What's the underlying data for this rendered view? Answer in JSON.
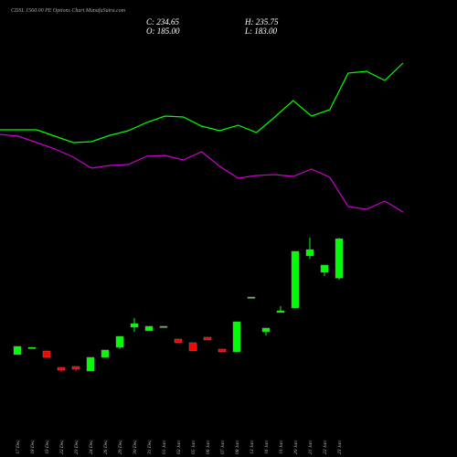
{
  "chart_data": {
    "type": "candlestick",
    "title": "CDSL 1560.00 PE Options  Chart MunafaSutra.com",
    "stats": [
      "C: 234.65",
      "H: 235.75",
      "O: 185.00",
      "L: 183.00"
    ],
    "categories": [
      "17 Dec",
      "18 Dec",
      "19 Dec",
      "22 Dec",
      "23 Dec",
      "24 Dec",
      "26 Dec",
      "29 Dec",
      "30 Dec",
      "31 Dec",
      "01 Jan",
      "02 Jan",
      "05 Jan",
      "06 Jan",
      "07 Jan",
      "08 Jan",
      "12 Jan",
      "16 Jan",
      "19 Jan",
      "20 Jan",
      "21 Jan",
      "22 Jan",
      "23 Jan"
    ],
    "open": [
      88.8,
      96.9,
      93.4,
      72.7,
      73.9,
      68.1,
      85.4,
      98,
      123.3,
      118.7,
      123.3,
      108.4,
      103.8,
      110.7,
      95.7,
      92.3,
      160.1,
      117.6,
      141.7,
      147.5,
      213,
      192.3,
      185
    ],
    "high": [
      99.2,
      98,
      93.4,
      72.7,
      73.9,
      85.4,
      94.6,
      111.8,
      134.8,
      124.5,
      124.5,
      108.4,
      103.8,
      110.7,
      95.7,
      130.2,
      161.3,
      122.2,
      149.8,
      218.8,
      236,
      201.5,
      235.75
    ],
    "low": [
      88.8,
      96.9,
      85.4,
      67,
      68.1,
      68.1,
      85.4,
      95.7,
      117.6,
      118.7,
      123.3,
      103.8,
      93.4,
      107.2,
      92.3,
      92.3,
      160.1,
      113,
      141.7,
      147.5,
      209.6,
      187.7,
      183
    ],
    "close": [
      99.2,
      98,
      85.4,
      69.3,
      70.4,
      85.4,
      94.6,
      111.8,
      127.9,
      124.5,
      124.5,
      103.8,
      93.4,
      107.2,
      92.3,
      130.2,
      161.3,
      122.2,
      144,
      218.8,
      221,
      201.5,
      234.65
    ],
    "up_color": "#00ff00",
    "down_color": "#ff0000",
    "lines": [
      {
        "color": "#00ff00",
        "values": [
          371.7,
          371.7,
          371.7,
          363.7,
          355.6,
          356.8,
          364.8,
          370.6,
          380.9,
          389,
          387.8,
          376.3,
          370.6,
          377.5,
          368.3,
          387.8,
          408.5,
          389,
          397,
          443,
          445.3,
          433.8,
          455.7
        ]
      },
      {
        "color": "#cc00cc",
        "values": [
          366,
          363.7,
          355.6,
          347.6,
          337.2,
          323.4,
          326.9,
          328,
          338.4,
          339.5,
          333.8,
          344.1,
          325.7,
          310.8,
          314.2,
          315.4,
          313.1,
          322.3,
          311.9,
          275.1,
          271.7,
          282,
          268.2
        ]
      }
    ],
    "ylim": [
      -40,
      535
    ]
  }
}
